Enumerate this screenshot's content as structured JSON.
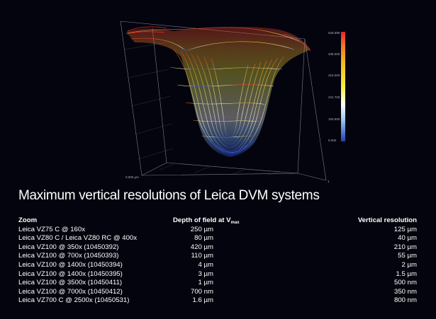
{
  "figure": {
    "colorbar_ticks": [
      "526.599",
      "408.000",
      "315.000",
      "231.700",
      "100.500",
      "0.000"
    ],
    "axis_labels": [
      "0.000 µm",
      "1"
    ]
  },
  "title": "Maximum vertical resolutions of Leica DVM systems",
  "table": {
    "headers": {
      "zoom": "Zoom",
      "dof": "Depth of field at V",
      "dof_sub": "max",
      "vr": "Vertical resolution"
    },
    "rows": [
      {
        "zoom": "Leica VZ75 C @ 160x",
        "dof": "250 µm",
        "vr": "125 µm"
      },
      {
        "zoom": "Leica VZ80 C / Leica VZ80 RC @ 400x",
        "dof": "80 µm",
        "vr": "40 µm"
      },
      {
        "zoom": "Leica VZ100 @ 350x (10450392)",
        "dof": "420 µm",
        "vr": "210 µm"
      },
      {
        "zoom": "Leica VZ100 @ 700x (10450393)",
        "dof": "110 µm",
        "vr": "55 µm"
      },
      {
        "zoom": "Leica VZ100 @ 1400x (10450394)",
        "dof": "4 µm",
        "vr": "2 µm"
      },
      {
        "zoom": "Leica VZ100 @ 1400x (10450395)",
        "dof": "3 µm",
        "vr": "1.5 µm"
      },
      {
        "zoom": "Leica VZ100 @ 3500x (10450411)",
        "dof": "1 µm",
        "vr": "500 nm"
      },
      {
        "zoom": "Leica VZ100 @ 7000x (10450412)",
        "dof": "700 nm",
        "vr": "350 nm"
      },
      {
        "zoom": "Leica VZ700 C @ 2500x (10450531)",
        "dof": "1.6 µm",
        "vr": "800 nm"
      }
    ]
  }
}
